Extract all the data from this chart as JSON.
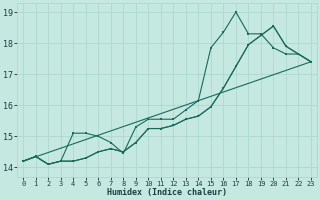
{
  "xlabel": "Humidex (Indice chaleur)",
  "xlim": [
    -0.5,
    23.5
  ],
  "ylim": [
    13.7,
    19.3
  ],
  "xticks": [
    0,
    1,
    2,
    3,
    4,
    5,
    6,
    7,
    8,
    9,
    10,
    11,
    12,
    13,
    14,
    15,
    16,
    17,
    18,
    19,
    20,
    21,
    22,
    23
  ],
  "yticks": [
    14,
    15,
    16,
    17,
    18,
    19
  ],
  "bg_color": "#c5e8e0",
  "grid_color": "#a8d4cc",
  "line_color": "#1a6b5a",
  "line1_x": [
    0,
    1,
    2,
    3,
    4,
    5,
    6,
    7,
    8,
    9,
    10,
    11,
    12,
    13,
    14,
    15,
    16,
    17,
    18,
    19,
    20,
    21,
    22,
    23
  ],
  "line1_y": [
    14.2,
    14.35,
    14.1,
    14.2,
    14.2,
    14.3,
    14.5,
    14.6,
    14.5,
    14.8,
    15.25,
    15.25,
    15.35,
    15.55,
    15.65,
    15.95,
    16.55,
    17.25,
    17.95,
    18.25,
    18.55,
    17.9,
    17.65,
    17.4
  ],
  "line2_x": [
    0,
    1,
    2,
    3,
    4,
    5,
    6,
    7,
    8,
    9,
    10,
    11,
    12,
    13,
    14,
    15,
    16,
    17,
    18,
    19,
    20,
    21,
    22,
    23
  ],
  "line2_y": [
    14.2,
    14.35,
    14.1,
    14.2,
    15.1,
    15.1,
    15.0,
    14.8,
    14.45,
    15.3,
    15.55,
    15.55,
    15.55,
    15.85,
    16.15,
    17.85,
    18.35,
    19.0,
    18.3,
    18.3,
    17.85,
    17.65,
    17.65,
    17.4
  ],
  "line3_x": [
    0,
    1,
    2,
    3,
    4,
    5,
    6,
    7,
    8,
    9,
    10,
    11,
    12,
    13,
    14,
    15,
    16,
    17,
    18,
    19,
    20,
    21,
    22,
    23
  ],
  "line3_y": [
    14.2,
    14.35,
    14.1,
    14.2,
    14.2,
    14.3,
    14.5,
    14.6,
    14.5,
    14.8,
    15.25,
    15.25,
    15.35,
    15.55,
    15.65,
    15.95,
    16.55,
    17.25,
    17.95,
    18.25,
    18.55,
    17.9,
    17.65,
    17.4
  ],
  "line4_x": [
    0,
    23
  ],
  "line4_y": [
    14.2,
    17.4
  ]
}
